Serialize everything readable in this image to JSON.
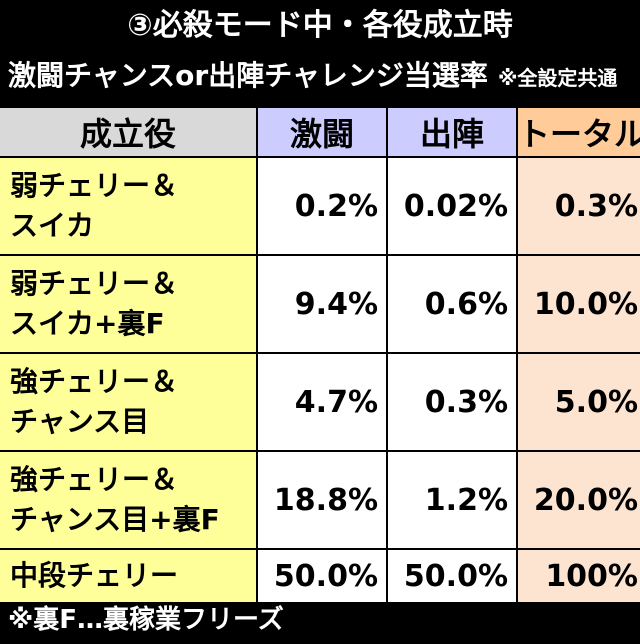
{
  "header": {
    "title": "③必殺モード中・各役成立時",
    "subtitle": "激闘チャンスor出陣チャレンジ当選率",
    "note": "※全設定共通"
  },
  "table": {
    "columns": [
      "成立役",
      "激闘",
      "出陣",
      "トータル"
    ],
    "rows": [
      [
        "弱チェリー＆\nスイカ",
        "0.2%",
        "0.02%",
        "0.3%"
      ],
      [
        "弱チェリー＆\nスイカ+裏F",
        "9.4%",
        "0.6%",
        "10.0%"
      ],
      [
        "強チェリー＆\nチャンス目",
        "4.7%",
        "0.3%",
        "5.0%"
      ],
      [
        "強チェリー＆\nチャンス目+裏F",
        "18.8%",
        "1.2%",
        "20.0%"
      ],
      [
        "中段チェリー",
        "50.0%",
        "50.0%",
        "100%"
      ]
    ]
  },
  "footer": "※裏F…裏稼業フリーズ"
}
